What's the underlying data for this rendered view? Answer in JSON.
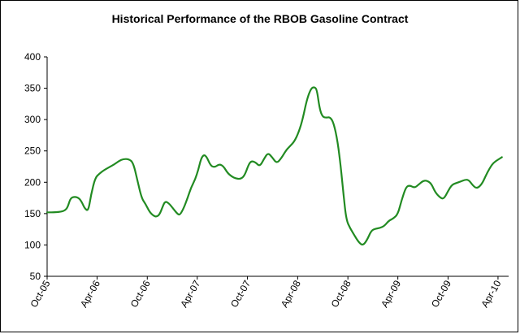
{
  "chart_data": {
    "type": "line",
    "title": "Historical Performance of the RBOB Gasoline Contract",
    "xlabel": "",
    "ylabel": "",
    "ylim": [
      50,
      400
    ],
    "yticks": [
      50,
      100,
      150,
      200,
      250,
      300,
      350,
      400
    ],
    "xlim": [
      "2005-10",
      "2010-04"
    ],
    "xtick_labels": [
      "Oct-05",
      "Apr-06",
      "Oct-06",
      "Apr-07",
      "Oct-07",
      "Apr-08",
      "Oct-08",
      "Apr-09",
      "Oct-09",
      "Apr-10"
    ],
    "legend": "none",
    "grid": false,
    "line_color": "#228B22",
    "series": [
      {
        "points": [
          [
            "2005-10-01",
            152
          ],
          [
            "2005-11-01",
            152
          ],
          [
            "2005-11-20",
            153
          ],
          [
            "2005-12-05",
            155
          ],
          [
            "2005-12-15",
            160
          ],
          [
            "2005-12-25",
            175
          ],
          [
            "2006-01-10",
            177
          ],
          [
            "2006-01-25",
            175
          ],
          [
            "2006-02-05",
            168
          ],
          [
            "2006-02-15",
            158
          ],
          [
            "2006-02-28",
            154
          ],
          [
            "2006-03-10",
            180
          ],
          [
            "2006-03-25",
            207
          ],
          [
            "2006-04-10",
            214
          ],
          [
            "2006-04-25",
            219
          ],
          [
            "2006-05-15",
            224
          ],
          [
            "2006-06-01",
            228
          ],
          [
            "2006-06-20",
            234
          ],
          [
            "2006-07-05",
            237
          ],
          [
            "2006-07-25",
            237
          ],
          [
            "2006-08-10",
            232
          ],
          [
            "2006-08-25",
            205
          ],
          [
            "2006-09-10",
            175
          ],
          [
            "2006-09-25",
            165
          ],
          [
            "2006-10-10",
            152
          ],
          [
            "2006-10-25",
            146
          ],
          [
            "2006-11-05",
            145
          ],
          [
            "2006-11-15",
            149
          ],
          [
            "2006-11-25",
            160
          ],
          [
            "2006-12-05",
            170
          ],
          [
            "2006-12-20",
            166
          ],
          [
            "2007-01-05",
            157
          ],
          [
            "2007-01-20",
            149
          ],
          [
            "2007-01-28",
            148
          ],
          [
            "2007-02-10",
            158
          ],
          [
            "2007-02-25",
            175
          ],
          [
            "2007-03-10",
            192
          ],
          [
            "2007-03-25",
            205
          ],
          [
            "2007-04-05",
            220
          ],
          [
            "2007-04-15",
            238
          ],
          [
            "2007-04-25",
            244
          ],
          [
            "2007-05-05",
            241
          ],
          [
            "2007-05-20",
            226
          ],
          [
            "2007-06-05",
            224
          ],
          [
            "2007-06-20",
            229
          ],
          [
            "2007-07-05",
            226
          ],
          [
            "2007-07-20",
            215
          ],
          [
            "2007-08-05",
            209
          ],
          [
            "2007-08-20",
            206
          ],
          [
            "2007-09-05",
            205
          ],
          [
            "2007-09-20",
            210
          ],
          [
            "2007-10-05",
            228
          ],
          [
            "2007-10-15",
            234
          ],
          [
            "2007-10-30",
            232
          ],
          [
            "2007-11-15",
            225
          ],
          [
            "2007-12-01",
            238
          ],
          [
            "2007-12-15",
            247
          ],
          [
            "2007-12-30",
            240
          ],
          [
            "2008-01-15",
            230
          ],
          [
            "2008-02-01",
            238
          ],
          [
            "2008-02-20",
            252
          ],
          [
            "2008-03-05",
            258
          ],
          [
            "2008-03-20",
            265
          ],
          [
            "2008-04-05",
            280
          ],
          [
            "2008-04-20",
            302
          ],
          [
            "2008-05-05",
            333
          ],
          [
            "2008-05-20",
            350
          ],
          [
            "2008-06-01",
            352
          ],
          [
            "2008-06-10",
            348
          ],
          [
            "2008-06-20",
            317
          ],
          [
            "2008-07-01",
            304
          ],
          [
            "2008-07-15",
            303
          ],
          [
            "2008-07-28",
            304
          ],
          [
            "2008-08-10",
            295
          ],
          [
            "2008-08-25",
            264
          ],
          [
            "2008-09-05",
            225
          ],
          [
            "2008-09-15",
            180
          ],
          [
            "2008-09-25",
            140
          ],
          [
            "2008-10-10",
            126
          ],
          [
            "2008-10-25",
            115
          ],
          [
            "2008-11-10",
            104
          ],
          [
            "2008-11-25",
            99
          ],
          [
            "2008-12-10",
            108
          ],
          [
            "2008-12-25",
            123
          ],
          [
            "2009-01-10",
            126
          ],
          [
            "2009-01-25",
            127
          ],
          [
            "2009-02-10",
            130
          ],
          [
            "2009-02-28",
            139
          ],
          [
            "2009-03-15",
            142
          ],
          [
            "2009-04-01",
            149
          ],
          [
            "2009-04-15",
            172
          ],
          [
            "2009-05-01",
            193
          ],
          [
            "2009-05-15",
            195
          ],
          [
            "2009-06-01",
            191
          ],
          [
            "2009-06-15",
            196
          ],
          [
            "2009-07-01",
            202
          ],
          [
            "2009-07-15",
            203
          ],
          [
            "2009-08-01",
            198
          ],
          [
            "2009-08-15",
            184
          ],
          [
            "2009-09-01",
            176
          ],
          [
            "2009-09-15",
            173
          ],
          [
            "2009-10-01",
            186
          ],
          [
            "2009-10-15",
            196
          ],
          [
            "2009-11-01",
            199
          ],
          [
            "2009-11-15",
            201
          ],
          [
            "2009-12-01",
            204
          ],
          [
            "2009-12-15",
            204
          ],
          [
            "2010-01-01",
            194
          ],
          [
            "2010-01-15",
            190
          ],
          [
            "2010-02-01",
            197
          ],
          [
            "2010-02-15",
            210
          ],
          [
            "2010-03-01",
            222
          ],
          [
            "2010-03-15",
            231
          ],
          [
            "2010-04-01",
            236
          ],
          [
            "2010-04-15",
            240
          ]
        ]
      }
    ]
  }
}
